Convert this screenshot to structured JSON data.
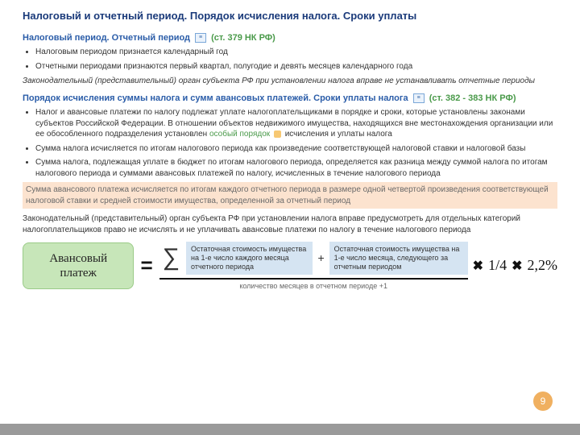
{
  "title": "Налоговый и отчетный период. Порядок исчисления налога. Сроки уплаты",
  "section1": {
    "heading_blue": "Налоговый период. Отчетный период",
    "heading_green": "(ст. 379 НК РФ)",
    "bullets": [
      "Налоговым периодом признается календарный год",
      "Отчетными периодами признаются первый квартал, полугодие и девять месяцев календарного года"
    ],
    "italic": "Законодательный (представительный) орган субъекта РФ при установлении налога вправе не устанавливать отчетные периоды"
  },
  "section2": {
    "heading_blue": "Порядок исчисления суммы налога и сумм авансовых платежей. Сроки уплаты налога",
    "heading_green": "(ст. 382 - 383 НК РФ)",
    "b1a": "Налог и авансовые платежи по налогу подлежат уплате налогоплательщиками в порядке и сроки, которые установлены законами субъектов Российской Федерации. В отношении объектов недвижимого имущества, находящихся вне местонахождения организации или ее обособленного подразделения установлен ",
    "link": "особый порядок",
    "b1b": " исчисления и уплаты налога",
    "b2": "Сумма налога исчисляется по итогам налогового периода как произведение соответствующей налоговой ставки и налоговой базы",
    "b3": "Сумма налога, подлежащая уплате в бюджет по итогам налогового периода, определяется как разница между суммой налога по итогам налогового периода и суммами авансовых платежей по налогу, исчисленных в течение налогового периода",
    "hl": "Сумма авансового платежа исчисляется по итогам каждого отчетного периода в размере одной четвертой произведения соответствующей налоговой ставки и средней стоимости имущества, определенной за отчетный период",
    "closing": "Законодательный (представительный) орган субъекта РФ при установлении налога вправе предусмотреть для отдельных категорий налогоплательщиков право не исчислять и не уплачивать авансовые платежи по налогу в течение налогового периода"
  },
  "formula": {
    "label": "Авансовый платеж",
    "eq": "=",
    "sigma": "∑",
    "box1": "Остаточная стоимость имущества на 1-е число каждого месяца отчетного периода",
    "plus": "+",
    "box2": "Остаточная стоимость имущества на 1-е число месяца, следующего за отчетным периодом",
    "denom": "количество месяцев в отчетном периоде +1",
    "mult": "✖",
    "frac1": "1/4",
    "pct": "2,2%"
  },
  "pagenum": "9",
  "colors": {
    "title": "#1a3a7a",
    "blue": "#2a5ca8",
    "green": "#4a9a4a",
    "highlight_bg": "#fce3cf",
    "box_green_bg": "#c7e6b9",
    "box_blue_bg": "#d5e4f2",
    "pagenum_bg": "#f0b060"
  }
}
